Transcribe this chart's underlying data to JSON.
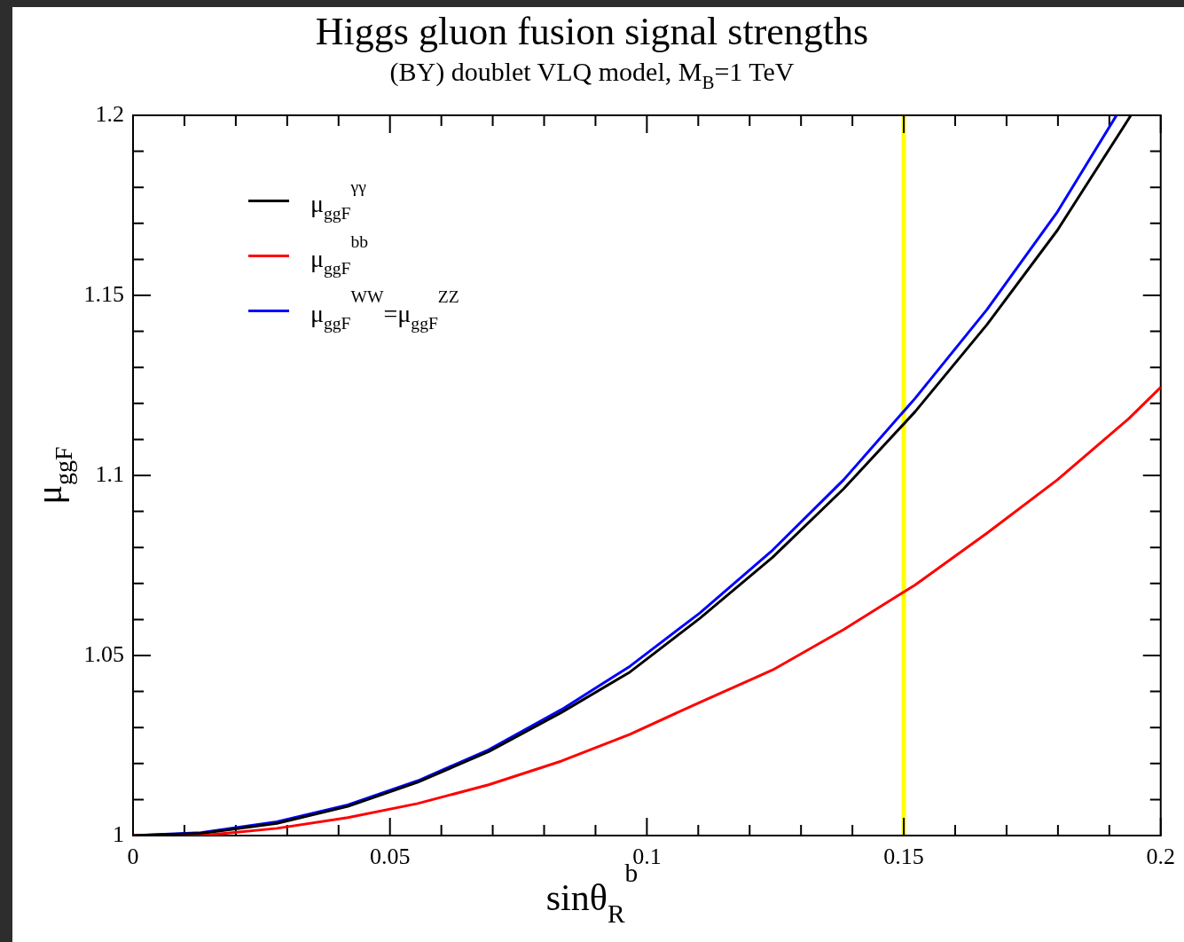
{
  "chart_data": {
    "type": "line",
    "title": "Higgs gluon fusion signal strengths",
    "subtitle": "(BY) doublet  VLQ model, M$_{B}$=1 TeV",
    "xlabel": "sinθ$_{R}$$^{b}$",
    "ylabel": "μ$_{ggF}$",
    "series": [
      {
        "name": "μ$_{ggF}$$^{γγ}$",
        "color": "#000000",
        "x": [
          0,
          0.0132,
          0.028,
          0.0418,
          0.0554,
          0.0692,
          0.0834,
          0.0967,
          0.1103,
          0.1245,
          0.1383,
          0.1522,
          0.1662,
          0.1799,
          0.1942
        ],
        "values": [
          1,
          1.0006,
          1.0034,
          1.0081,
          1.0148,
          1.0233,
          1.0342,
          1.0454,
          1.0603,
          1.0773,
          1.0963,
          1.1177,
          1.1419,
          1.1681,
          1.2
        ]
      },
      {
        "name": "μ$_{ggF}$$^{bb}$",
        "color": "#ff0000",
        "x": [
          0,
          0.0132,
          0.028,
          0.0418,
          0.0554,
          0.0692,
          0.0834,
          0.0967,
          0.1103,
          0.1245,
          0.1383,
          0.1522,
          0.1662,
          0.1799,
          0.1938,
          0.2
        ],
        "values": [
          1,
          1,
          1.002,
          1.005,
          1.0089,
          1.0141,
          1.0207,
          1.0281,
          1.037,
          1.046,
          1.0572,
          1.0696,
          1.084,
          1.0988,
          1.1158,
          1.1245
        ]
      },
      {
        "name": "μ$_{ggF}$$^{WW}$=μ$_{ggF}$$^{ZZ}$",
        "color": "#0000ff",
        "x": [
          0,
          0.0132,
          0.028,
          0.0418,
          0.0554,
          0.0692,
          0.0834,
          0.0967,
          0.1103,
          0.1245,
          0.1383,
          0.1522,
          0.1662,
          0.1799,
          0.1914
        ],
        "values": [
          1,
          1.0008,
          1.0038,
          1.0085,
          1.0152,
          1.0238,
          1.035,
          1.047,
          1.0618,
          1.0793,
          1.0988,
          1.1214,
          1.1461,
          1.1732,
          1.2
        ]
      }
    ],
    "xlim": [
      0,
      0.2
    ],
    "ylim": [
      1,
      1.2
    ],
    "xticks": [
      0,
      {
        "value": 0.01,
        "label": null
      },
      {
        "value": 0.02,
        "label": null
      },
      {
        "value": 0.03,
        "label": null
      },
      {
        "value": 0.04,
        "label": null
      },
      0.05,
      {
        "value": 0.06,
        "label": null
      },
      {
        "value": 0.07,
        "label": null
      },
      {
        "value": 0.08,
        "label": null
      },
      {
        "value": 0.09,
        "label": null
      },
      0.1,
      {
        "value": 0.11,
        "label": null
      },
      {
        "value": 0.12,
        "label": null
      },
      {
        "value": 0.13,
        "label": null
      },
      {
        "value": 0.14,
        "label": null
      },
      0.15,
      {
        "value": 0.16,
        "label": null
      },
      {
        "value": 0.17,
        "label": null
      },
      {
        "value": 0.18,
        "label": null
      },
      {
        "value": 0.19,
        "label": null
      },
      0.2
    ],
    "yticks": [
      1,
      {
        "value": 1.01,
        "label": null
      },
      {
        "value": 1.02,
        "label": null
      },
      {
        "value": 1.03,
        "label": null
      },
      {
        "value": 1.04,
        "label": null
      },
      1.05,
      {
        "value": 1.06,
        "label": null
      },
      {
        "value": 1.07,
        "label": null
      },
      {
        "value": 1.08,
        "label": null
      },
      {
        "value": 1.09,
        "label": null
      },
      1.1,
      {
        "value": 1.11,
        "label": null
      },
      {
        "value": 1.12,
        "label": null
      },
      {
        "value": 1.13,
        "label": null
      },
      {
        "value": 1.14,
        "label": null
      },
      1.15,
      {
        "value": 1.16,
        "label": null
      },
      {
        "value": 1.17,
        "label": null
      },
      {
        "value": 1.18,
        "label": null
      },
      {
        "value": 1.19,
        "label": null
      },
      1.2
    ],
    "ref_lines": [
      {
        "axis": "x",
        "value": 0.15,
        "color": "#ffff00"
      }
    ],
    "grid": false,
    "legend": "top left",
    "marker": "none",
    "line_style": "solid"
  }
}
